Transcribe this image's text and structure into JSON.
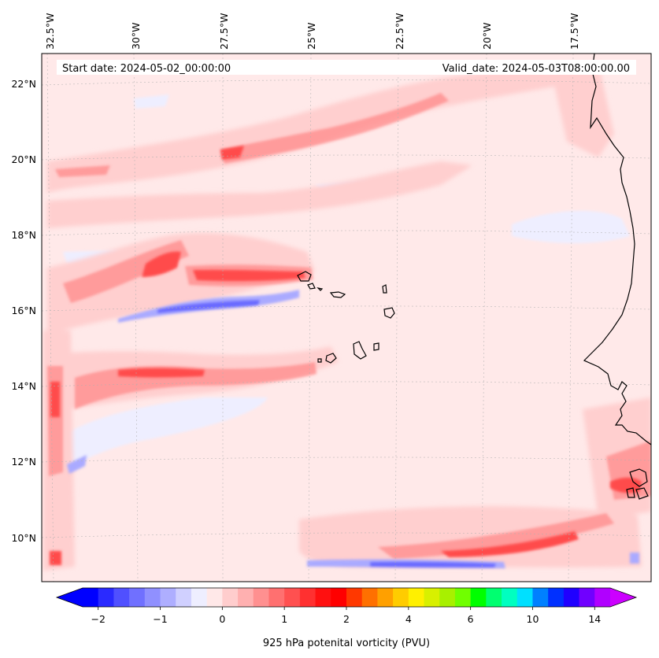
{
  "map": {
    "start_date_label": "Start date: 2024-05-02_00:00:00",
    "valid_date_label": "Valid_date: 2024-05-03T08:00:00.00",
    "longitude_labels": [
      "32.5°W",
      "30°W",
      "27.5°W",
      "25°W",
      "22.5°W",
      "20°W",
      "17.5°W"
    ],
    "latitude_labels": [
      "22°N",
      "20°N",
      "18°N",
      "16°N",
      "14°N",
      "12°N",
      "10°N"
    ],
    "colors": {
      "background_field": "#ffe9e9",
      "light_pink": "#ffcfcf",
      "pink": "#ffb0b0",
      "salmon": "#ff8a8a",
      "red": "#ff4c4c",
      "deep_red": "#f03030",
      "light_blue": "#eeeeff",
      "mid_blue": "#aaaaff",
      "blue": "#6a6aff",
      "coastline": "#000000",
      "gridline": "#b0b0b0"
    }
  },
  "colorbar": {
    "label": "925 hPa potenital vorticity (PVU)",
    "tick_labels": [
      "−2",
      "−1",
      "0",
      "1",
      "2",
      "4",
      "6",
      "10",
      "14"
    ],
    "segment_colors": [
      "#0000ff",
      "#2a2aff",
      "#5050ff",
      "#7070ff",
      "#9090ff",
      "#aeaeff",
      "#d0d0ff",
      "#eeeeff",
      "#ffe8e8",
      "#ffcdcd",
      "#ffb0b0",
      "#ff9090",
      "#ff7070",
      "#ff5050",
      "#ff3030",
      "#ff1010",
      "#ff0000",
      "#ff3800",
      "#ff7000",
      "#ffa000",
      "#ffcc00",
      "#fff000",
      "#d8f000",
      "#a8f000",
      "#70ff00",
      "#00ff00",
      "#00ff70",
      "#00ffc0",
      "#00e0ff",
      "#0080ff",
      "#0030ff",
      "#2000ff",
      "#7000ff",
      "#b000ff"
    ],
    "extend_low_color": "#0000ff",
    "extend_high_color": "#cc00ff"
  }
}
